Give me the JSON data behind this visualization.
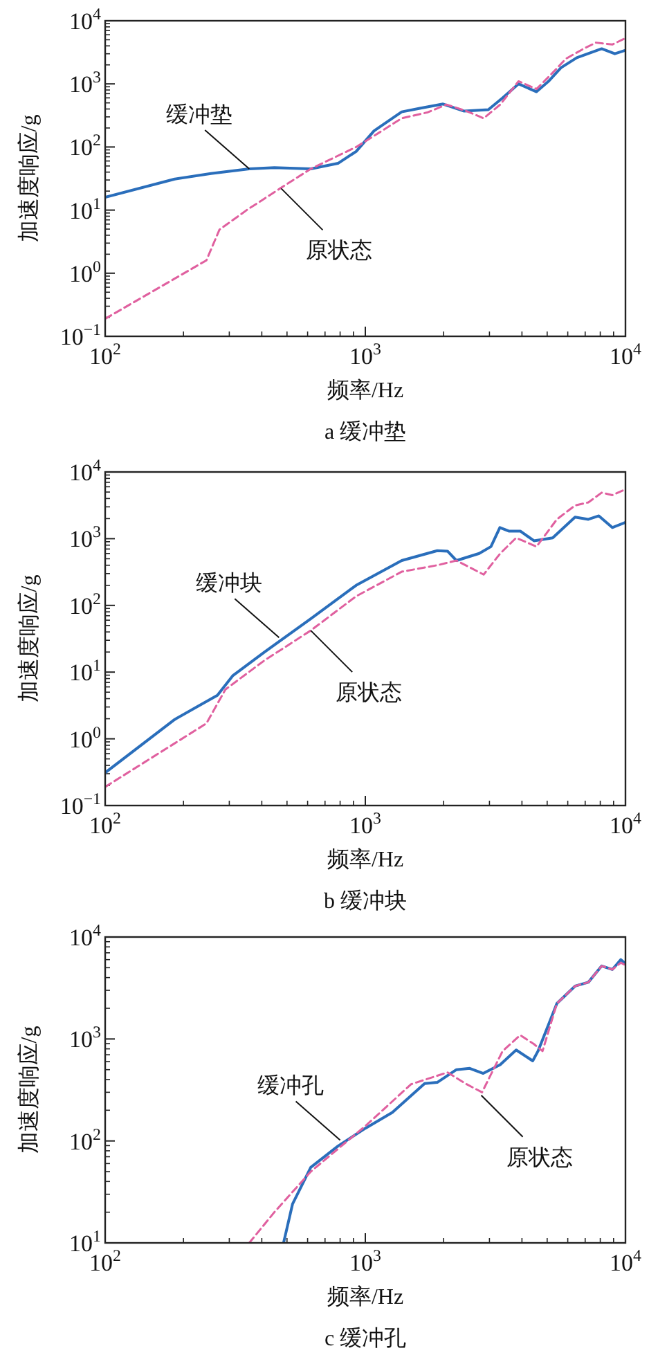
{
  "chart_data": [
    {
      "type": "line",
      "title": "a 缓冲垫",
      "xlabel": "频率/Hz",
      "ylabel": "加速度响应/g",
      "log": "xy",
      "xlim": [
        100,
        10000
      ],
      "ylim": [
        0.1,
        10000
      ],
      "xticks": [
        {
          "value": 100,
          "label": "10$^{2}$"
        },
        {
          "value": 1000,
          "label": "10$^{3}$"
        },
        {
          "value": 10000,
          "label": "10$^{4}$"
        }
      ],
      "yticks": [
        {
          "value": 0.1,
          "label": "10$^{−1}$"
        },
        {
          "value": 1,
          "label": "10$^{0}$"
        },
        {
          "value": 10,
          "label": "10$^{1}$"
        },
        {
          "value": 100,
          "label": "10$^{2}$"
        },
        {
          "value": 1000,
          "label": "10$^{3}$"
        },
        {
          "value": 10000,
          "label": "10$^{4}$"
        }
      ],
      "series": [
        {
          "color": "#2a6ebb",
          "line_style": "solid",
          "x": [
            100,
            185,
            255,
            358,
            447,
            617,
            785,
            922,
            1080,
            1380,
            1620,
            1990,
            2400,
            2970,
            3370,
            3880,
            4550,
            5050,
            5650,
            6500,
            8100,
            9100,
            10000
          ],
          "values": [
            16,
            31,
            38,
            45,
            47,
            45,
            55,
            85,
            180,
            360,
            410,
            480,
            370,
            390,
            600,
            1000,
            750,
            1090,
            1800,
            2600,
            3600,
            3000,
            3400
          ]
        },
        {
          "color": "#e0609f",
          "line_style": "dashed",
          "x": [
            100,
            245,
            275,
            350,
            470,
            617,
            922,
            1080,
            1380,
            1740,
            2050,
            2450,
            2850,
            3300,
            3880,
            4550,
            5250,
            5900,
            6900,
            7700,
            8900,
            10000
          ],
          "values": [
            0.19,
            1.6,
            4.9,
            10,
            22,
            45,
            100,
            150,
            285,
            355,
            470,
            370,
            285,
            470,
            1100,
            830,
            1500,
            2500,
            3600,
            4500,
            4200,
            5300
          ]
        }
      ],
      "annotations": [
        {
          "text": "缓冲垫",
          "x": 358,
          "y": 45
        },
        {
          "text": "原状态",
          "x": 475,
          "y": 22
        }
      ]
    },
    {
      "type": "line",
      "title": "b 缓冲块",
      "xlabel": "频率/Hz",
      "ylabel": "加速度响应/g",
      "log": "xy",
      "xlim": [
        100,
        10000
      ],
      "ylim": [
        0.1,
        10000
      ],
      "xticks": [
        {
          "value": 100,
          "label": "10$^{2}$"
        },
        {
          "value": 1000,
          "label": "10$^{3}$"
        },
        {
          "value": 10000,
          "label": "10$^{4}$"
        }
      ],
      "yticks": [
        {
          "value": 0.1,
          "label": "10$^{−1}$"
        },
        {
          "value": 1,
          "label": "10$^{0}$"
        },
        {
          "value": 10,
          "label": "10$^{1}$"
        },
        {
          "value": 100,
          "label": "10$^{2}$"
        },
        {
          "value": 1000,
          "label": "10$^{3}$"
        },
        {
          "value": 10000,
          "label": "10$^{4}$"
        }
      ],
      "series": [
        {
          "color": "#2a6ebb",
          "line_style": "solid",
          "x": [
            100,
            185,
            270,
            310,
            410,
            617,
            922,
            1380,
            1890,
            2070,
            2240,
            2740,
            3040,
            3290,
            3560,
            3940,
            4450,
            5250,
            6400,
            7200,
            7900,
            8900,
            10000
          ],
          "values": [
            0.31,
            1.95,
            4.5,
            8.9,
            20,
            63,
            200,
            470,
            660,
            650,
            470,
            600,
            760,
            1470,
            1300,
            1300,
            930,
            1030,
            2100,
            1950,
            2200,
            1470,
            1750
          ]
        },
        {
          "color": "#e0609f",
          "line_style": "dashed",
          "x": [
            100,
            245,
            290,
            410,
            617,
            922,
            1380,
            1890,
            2240,
            2850,
            3300,
            3800,
            4550,
            5450,
            6400,
            7200,
            8100,
            8900,
            10000
          ],
          "values": [
            0.19,
            1.7,
            5.5,
            15,
            42,
            137,
            320,
            400,
            470,
            290,
            600,
            1030,
            760,
            1950,
            3150,
            3500,
            4900,
            4500,
            5500
          ]
        }
      ],
      "annotations": [
        {
          "text": "缓冲块",
          "x": 466,
          "y": 33
        },
        {
          "text": "原状态",
          "x": 617,
          "y": 42
        }
      ]
    },
    {
      "type": "line",
      "title": "c 缓冲孔",
      "xlabel": "频率/Hz",
      "ylabel": "加速度响应/g",
      "log": "xy",
      "xlim": [
        100,
        10000
      ],
      "ylim": [
        10,
        10000
      ],
      "xticks": [
        {
          "value": 100,
          "label": "10$^{2}$"
        },
        {
          "value": 1000,
          "label": "10$^{3}$"
        },
        {
          "value": 10000,
          "label": "10$^{4}$"
        }
      ],
      "yticks": [
        {
          "value": 10,
          "label": "10$^{1}$"
        },
        {
          "value": 100,
          "label": "10$^{2}$"
        },
        {
          "value": 1000,
          "label": "10$^{3}$"
        },
        {
          "value": 10000,
          "label": "10$^{4}$"
        }
      ],
      "series": [
        {
          "color": "#2a6ebb",
          "line_style": "solid",
          "x": [
            485,
            525,
            617,
            785,
            1000,
            1270,
            1690,
            1890,
            2240,
            2520,
            2840,
            3300,
            3800,
            4400,
            4610,
            5450,
            6400,
            7200,
            8100,
            8900,
            9600,
            10000
          ],
          "values": [
            10,
            24,
            55,
            89,
            133,
            190,
            365,
            375,
            500,
            515,
            460,
            560,
            780,
            610,
            760,
            2230,
            3300,
            3600,
            5200,
            4800,
            6000,
            5500
          ]
        },
        {
          "color": "#e0609f",
          "line_style": "dashed",
          "x": [
            358,
            447,
            617,
            1000,
            1500,
            2070,
            2450,
            2810,
            3370,
            3940,
            4450,
            4800,
            5450,
            6400,
            7200,
            8100,
            8900,
            9600,
            10000
          ],
          "values": [
            10,
            20,
            50,
            140,
            360,
            470,
            360,
            300,
            760,
            1090,
            890,
            760,
            2230,
            3300,
            3600,
            5200,
            4800,
            5600,
            5300
          ]
        }
      ],
      "annotations": [
        {
          "text": "缓冲孔",
          "x": 800,
          "y": 102
        },
        {
          "text": "原状态",
          "x": 2790,
          "y": 280
        }
      ]
    }
  ]
}
